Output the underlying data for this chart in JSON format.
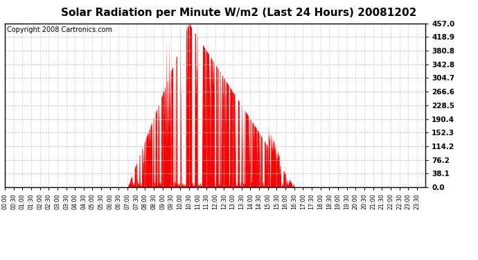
{
  "title": "Solar Radiation per Minute W/m2 (Last 24 Hours) 20081202",
  "copyright": "Copyright 2008 Cartronics.com",
  "yticks": [
    0.0,
    38.1,
    76.2,
    114.2,
    152.3,
    190.4,
    228.5,
    266.6,
    304.7,
    342.8,
    380.8,
    418.9,
    457.0
  ],
  "ymax": 457.0,
  "ymin": 0.0,
  "bar_color": "#ff0000",
  "bg_color": "#ffffff",
  "plot_bg_color": "#ffffff",
  "grid_color": "#c0c0c0",
  "dashed_line_color": "#ff0000",
  "title_fontsize": 11,
  "copyright_fontsize": 7,
  "sunrise_minute": 420,
  "sunset_minute": 990,
  "peak_minute": 630,
  "peak_value": 457.0
}
